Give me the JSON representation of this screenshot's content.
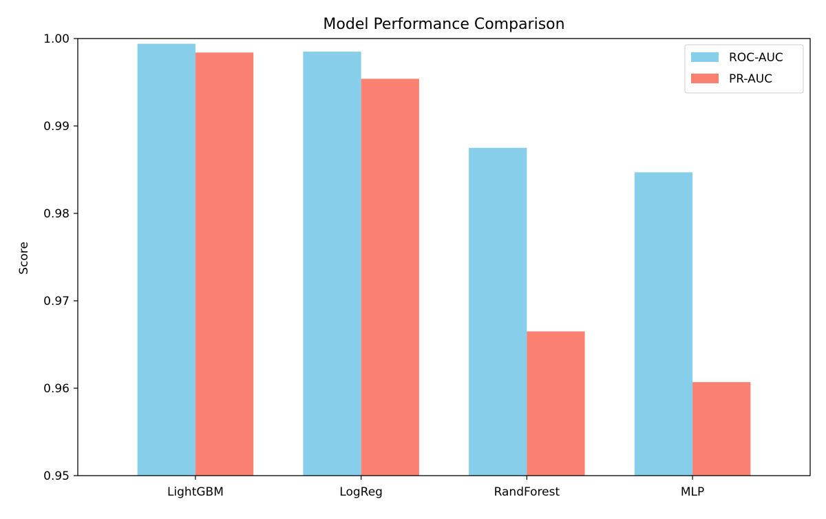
{
  "chart_data": {
    "type": "bar",
    "title": "Model Performance Comparison",
    "xlabel": "",
    "ylabel": "Score",
    "ylim": [
      0.95,
      1.0
    ],
    "yticks": [
      0.95,
      0.96,
      0.97,
      0.98,
      0.99,
      1.0
    ],
    "ytick_labels": [
      "0.95",
      "0.96",
      "0.97",
      "0.98",
      "0.99",
      "1.00"
    ],
    "categories": [
      "LightGBM",
      "LogReg",
      "RandForest",
      "MLP"
    ],
    "series": [
      {
        "name": "ROC-AUC",
        "color": "#87CEEB",
        "values": [
          0.9994,
          0.9985,
          0.9875,
          0.9847
        ]
      },
      {
        "name": "PR-AUC",
        "color": "#FA8072",
        "values": [
          0.9984,
          0.9954,
          0.9665,
          0.9607
        ]
      }
    ],
    "grid": false,
    "legend_position": "top-right"
  }
}
